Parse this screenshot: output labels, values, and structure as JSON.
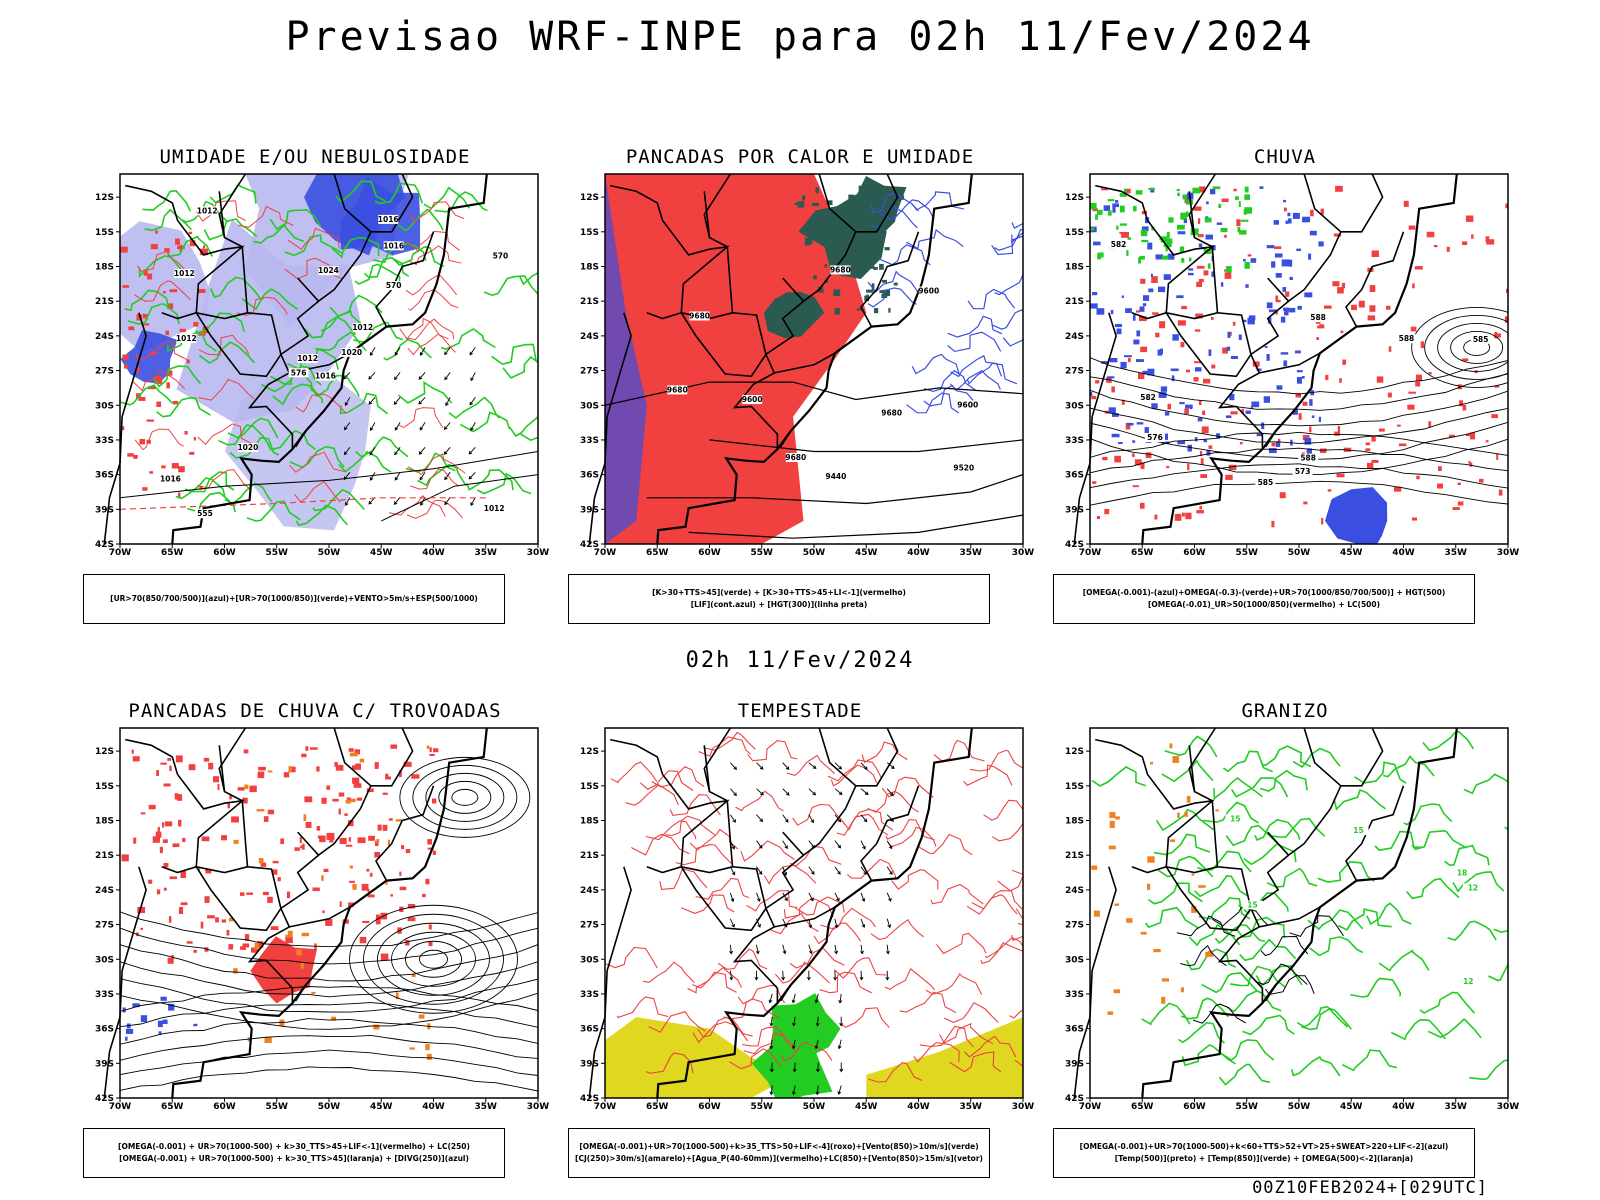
{
  "main_title": "Previsao WRF-INPE  para 02h 11/Fev/2024",
  "mid_title": "02h 11/Fev/2024",
  "footer": "00Z10FEB2024+[029UTC]",
  "axes": {
    "lat_ticks": [
      "12S",
      "15S",
      "18S",
      "21S",
      "24S",
      "27S",
      "30S",
      "33S",
      "36S",
      "39S",
      "42S"
    ],
    "lon_ticks": [
      "70W",
      "65W",
      "60W",
      "55W",
      "50W",
      "45W",
      "40W",
      "35W",
      "30W"
    ]
  },
  "colors": {
    "blue": "#3a4fe0",
    "lightblue": "#b8b8f0",
    "green": "#22cc22",
    "red": "#f04040",
    "darkgreen": "#2a5a50",
    "yellow": "#e0d820",
    "orange": "#f08020"
  },
  "panels": [
    {
      "title": "UMIDADE E/OU NEBULOSIDADE",
      "legend": [
        "[UR>70(850/700/500)](azul)+[UR>70(1000/850)](verde)+VENTO>5m/s+ESP(500/1000)"
      ],
      "labels": [
        "1016",
        "1012",
        "1012",
        "1016",
        "1012",
        "1020",
        "1016",
        "1024",
        "1016",
        "1020",
        "1012",
        "1012",
        "1012",
        "570",
        "576",
        "570",
        "555"
      ]
    },
    {
      "title": "PANCADAS POR CALOR E UMIDADE",
      "legend": [
        "[K>30+TTS>45](verde) + [K>30+TTS>45+LI<-1](vermelho)",
        "[LIF](cont.azul) + [HGT(300)](linha preta)"
      ],
      "labels": [
        "9680",
        "9680",
        "9600",
        "9680",
        "9680",
        "9680",
        "9600",
        "9520",
        "9440",
        "9600"
      ]
    },
    {
      "title": "CHUVA",
      "legend": [
        "[OMEGA(-0.001)-(azul)+OMEGA(-0.3)-(verde)+UR>70(1000/850/700/500)] + HGT(500)",
        "[OMEGA(-0.01)_UR>50(1000/850)(vermelho) + LC(500)"
      ],
      "labels": [
        "585",
        "588",
        "588",
        "582",
        "585",
        "576",
        "573",
        "582",
        "588"
      ]
    },
    {
      "title": "PANCADAS DE CHUVA C/ TROVOADAS",
      "legend": [
        "[OMEGA(-0.001) + UR>70(1000-500) + k>30_TTS>45+LIF<-1](vermelho) + LC(250)",
        "[OMEGA(-0.001) + UR>70(1000-500) + k>30_TTS>45](laranja) + [DIVG(250)](azul)"
      ],
      "labels": []
    },
    {
      "title": "TEMPESTADE",
      "legend": [
        "[OMEGA(-0.001)+UR>70(1000-500)+k>35_TTS>50+LIF<-4](roxo)+[Vento(850)>10m/s](verde)",
        "[CJ(250)>30m/s](amarelo)+[Agua_P(40-60mm)](vermelho)+LC(850)+[Vento(850)>15m/s](vetor)"
      ],
      "labels": []
    },
    {
      "title": "GRANIZO",
      "legend": [
        "[OMEGA(-0.001)+UR>70(1000-500)+k<60+TTS>52+VT>25+SWEAT>220+LIF<-2](azul)",
        "[Temp(500)](preto) + [Temp(850)](verde) + [OMEGA(500)<-2](laranja)"
      ],
      "labels": [
        "15",
        "18",
        "15",
        "12",
        "15",
        "12"
      ]
    }
  ]
}
